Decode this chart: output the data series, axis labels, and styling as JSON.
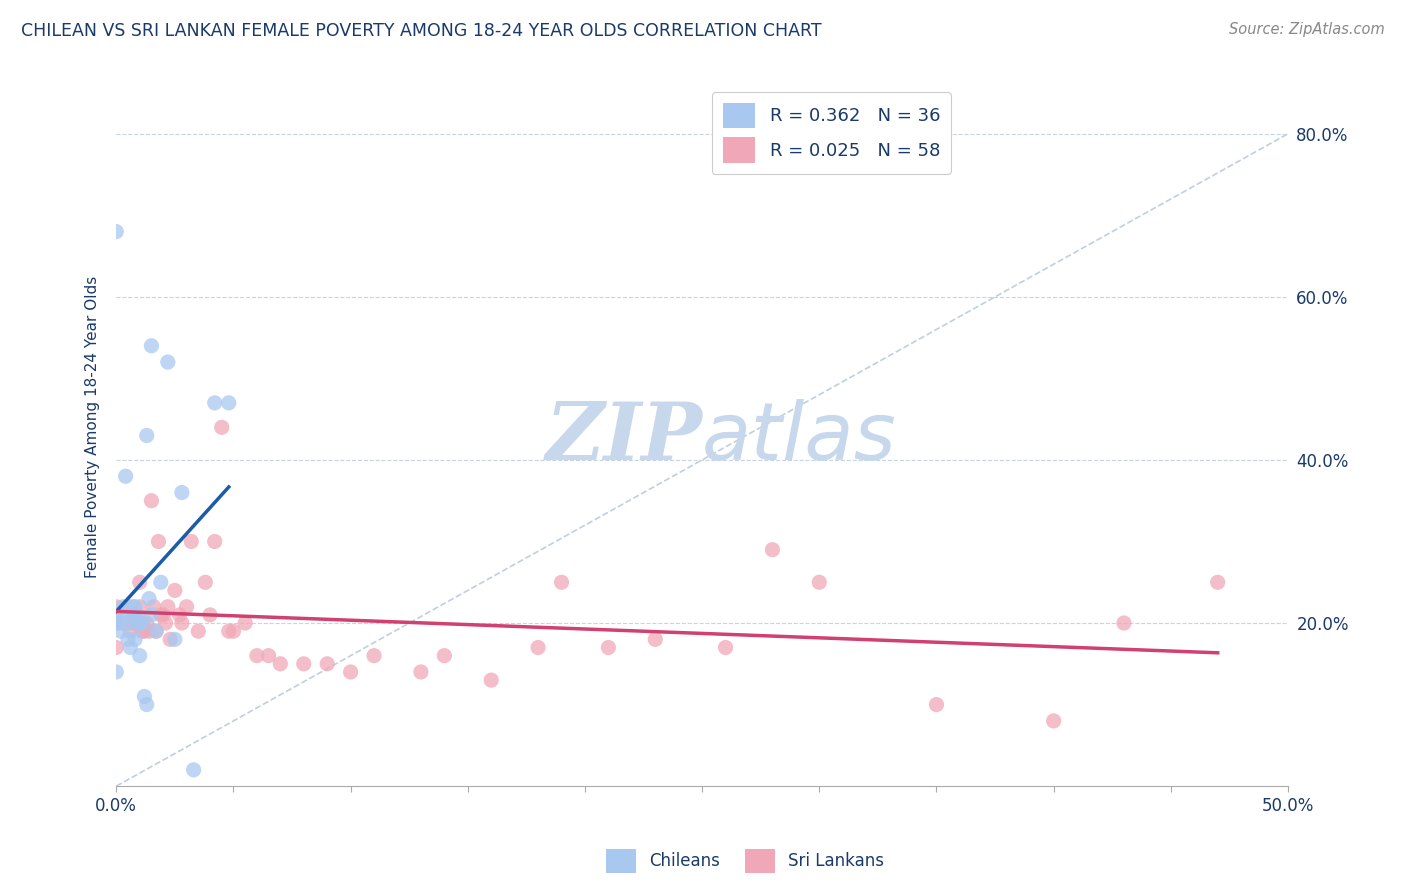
{
  "title": "CHILEAN VS SRI LANKAN FEMALE POVERTY AMONG 18-24 YEAR OLDS CORRELATION CHART",
  "source": "Source: ZipAtlas.com",
  "ylabel": "Female Poverty Among 18-24 Year Olds",
  "xlim": [
    0.0,
    0.5
  ],
  "ylim": [
    0.0,
    0.88
  ],
  "xticks": [
    0.0,
    0.05,
    0.1,
    0.15,
    0.2,
    0.25,
    0.3,
    0.35,
    0.4,
    0.45,
    0.5
  ],
  "xtick_labels": [
    "0.0%",
    "",
    "",
    "",
    "",
    "",
    "",
    "",
    "",
    "",
    "50.0%"
  ],
  "ytick_positions": [
    0.0,
    0.2,
    0.4,
    0.6,
    0.8
  ],
  "ytick_labels": [
    "",
    "20.0%",
    "40.0%",
    "60.0%",
    "80.0%"
  ],
  "chilean_R": 0.362,
  "chilean_N": 36,
  "srilankan_R": 0.025,
  "srilankan_N": 58,
  "chilean_color": "#a8c8f0",
  "chilean_line_color": "#1a5ca8",
  "srilankan_color": "#f0a8b8",
  "srilankan_line_color": "#d04070",
  "diagonal_color": "#c0cfe0",
  "watermark_zip": "ZIP",
  "watermark_atlas": "atlas",
  "watermark_color_zip": "#c8d8ec",
  "watermark_color_atlas": "#c8d8ec",
  "background_color": "#ffffff",
  "grid_color": "#c8d4e4",
  "title_color": "#1a3a6a",
  "source_color": "#888888",
  "axis_label_color": "#1a3a6a",
  "chileans_x": [
    0.0,
    0.0,
    0.0,
    0.0,
    0.0,
    0.001,
    0.002,
    0.003,
    0.004,
    0.005,
    0.005,
    0.006,
    0.006,
    0.007,
    0.007,
    0.008,
    0.008,
    0.009,
    0.009,
    0.01,
    0.01,
    0.011,
    0.012,
    0.013,
    0.013,
    0.014,
    0.015,
    0.015,
    0.017,
    0.019,
    0.022,
    0.025,
    0.028,
    0.033,
    0.042,
    0.048
  ],
  "chileans_y": [
    0.68,
    0.21,
    0.21,
    0.2,
    0.14,
    0.2,
    0.19,
    0.22,
    0.38,
    0.2,
    0.18,
    0.17,
    0.21,
    0.21,
    0.22,
    0.18,
    0.22,
    0.2,
    0.21,
    0.2,
    0.16,
    0.2,
    0.11,
    0.43,
    0.1,
    0.23,
    0.21,
    0.54,
    0.19,
    0.25,
    0.52,
    0.18,
    0.36,
    0.02,
    0.47,
    0.47
  ],
  "srilankans_x": [
    0.0,
    0.0,
    0.0,
    0.003,
    0.005,
    0.006,
    0.007,
    0.008,
    0.009,
    0.01,
    0.01,
    0.011,
    0.012,
    0.013,
    0.014,
    0.015,
    0.016,
    0.017,
    0.018,
    0.019,
    0.02,
    0.021,
    0.022,
    0.023,
    0.025,
    0.027,
    0.028,
    0.03,
    0.032,
    0.035,
    0.038,
    0.04,
    0.042,
    0.045,
    0.048,
    0.05,
    0.055,
    0.06,
    0.065,
    0.07,
    0.08,
    0.09,
    0.1,
    0.11,
    0.13,
    0.14,
    0.16,
    0.18,
    0.19,
    0.21,
    0.23,
    0.26,
    0.28,
    0.3,
    0.35,
    0.4,
    0.43,
    0.47
  ],
  "srilankans_y": [
    0.22,
    0.2,
    0.17,
    0.2,
    0.22,
    0.19,
    0.2,
    0.21,
    0.2,
    0.22,
    0.25,
    0.19,
    0.19,
    0.2,
    0.19,
    0.35,
    0.22,
    0.19,
    0.3,
    0.21,
    0.21,
    0.2,
    0.22,
    0.18,
    0.24,
    0.21,
    0.2,
    0.22,
    0.3,
    0.19,
    0.25,
    0.21,
    0.3,
    0.44,
    0.19,
    0.19,
    0.2,
    0.16,
    0.16,
    0.15,
    0.15,
    0.15,
    0.14,
    0.16,
    0.14,
    0.16,
    0.13,
    0.17,
    0.25,
    0.17,
    0.18,
    0.17,
    0.29,
    0.25,
    0.1,
    0.08,
    0.2,
    0.25
  ]
}
